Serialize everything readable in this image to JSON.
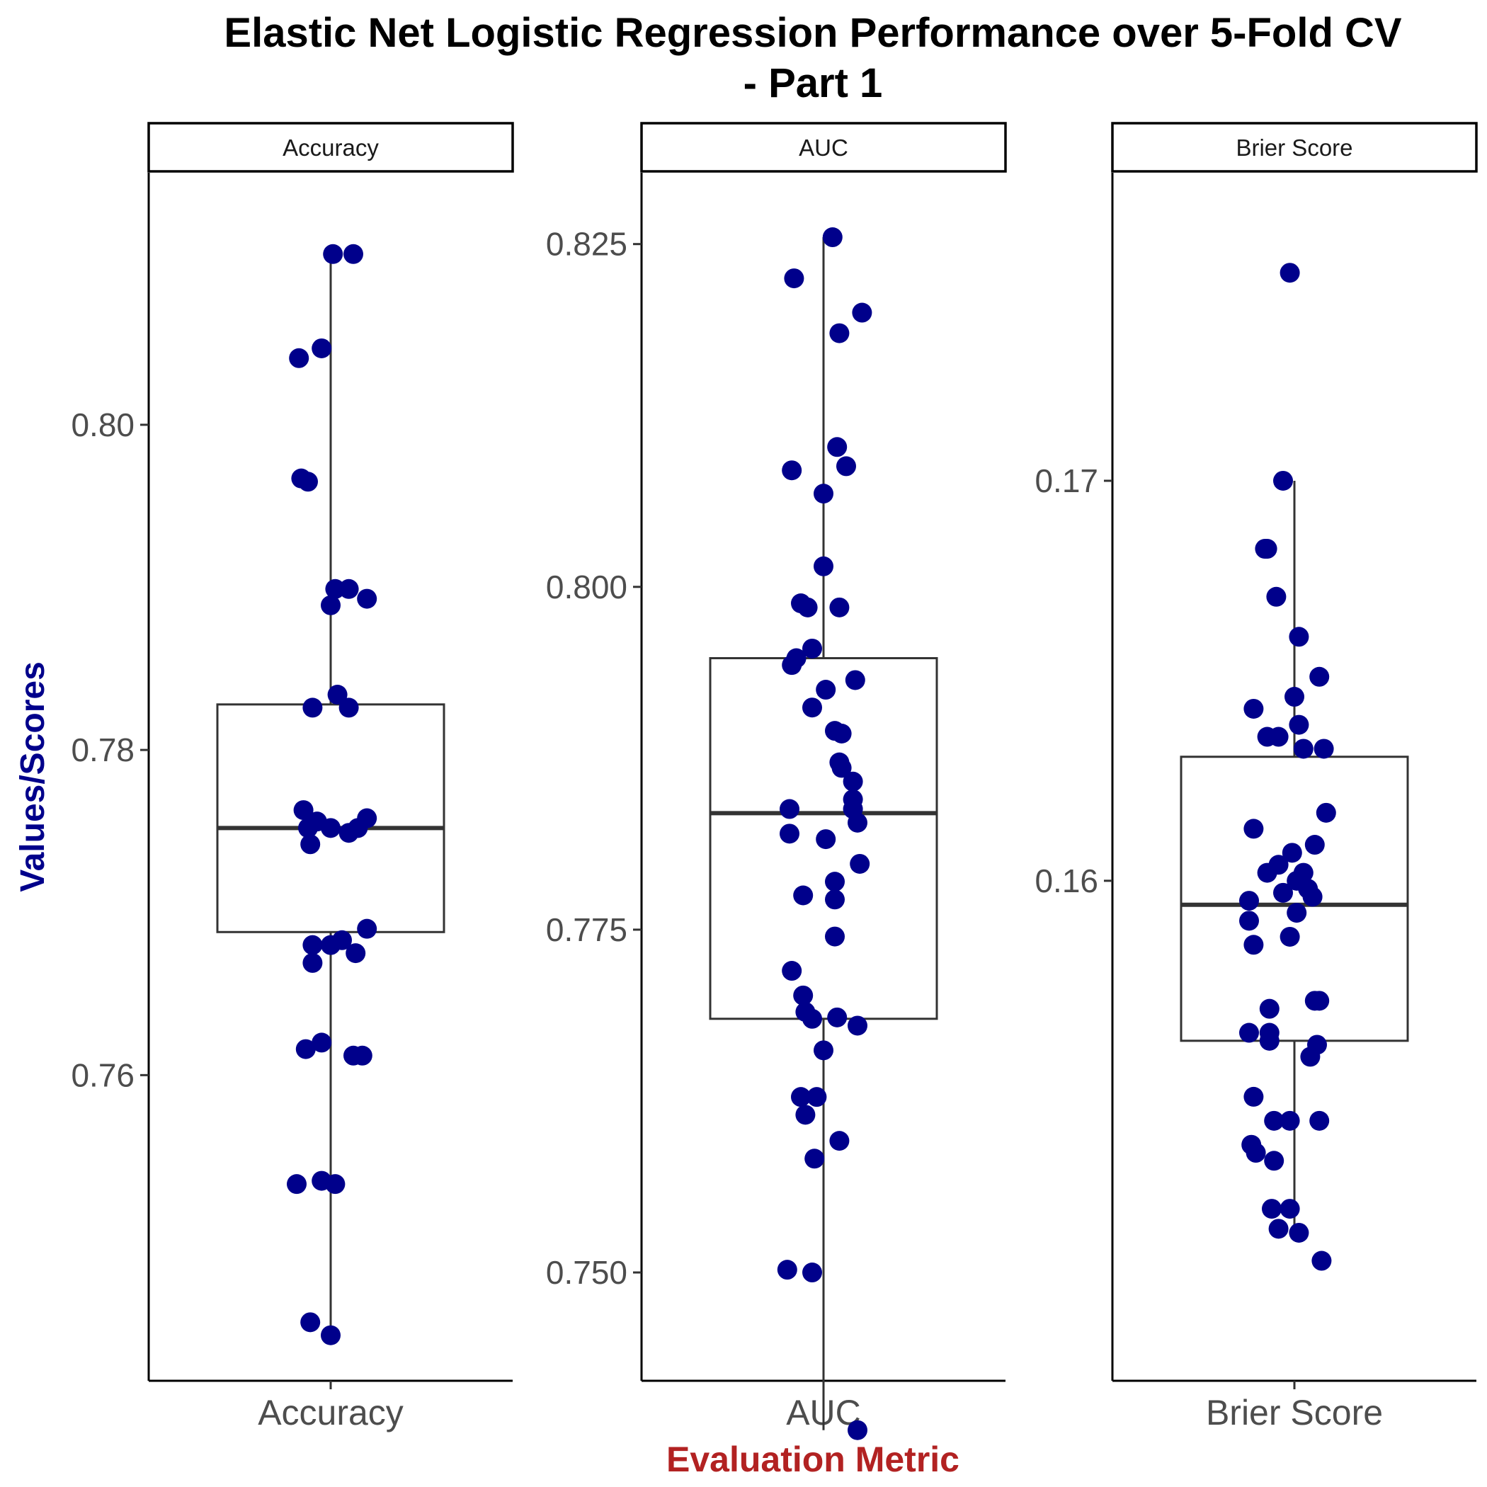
{
  "chart_data": {
    "type": "boxplot",
    "title_line1": "Elastic Net Logistic Regression Performance over 5-Fold CV",
    "title_line2": "- Part 1",
    "xlabel": "Evaluation Metric",
    "ylabel": "Values/Scores",
    "colors": {
      "points": "#00008B",
      "xlabel": "#B22222",
      "ylabel": "#00008B",
      "box": "#333333",
      "axis": "#000000"
    },
    "panels": [
      {
        "name": "Accuracy",
        "strip_label": "Accuracy",
        "x_tick": "Accuracy",
        "ylim": [
          0.7412,
          0.8155
        ],
        "ticks": [
          0.76,
          0.78,
          0.8
        ],
        "tick_labels": [
          "0.76",
          "0.78",
          "0.80"
        ],
        "box": {
          "min": 0.744,
          "q1": 0.7688,
          "median": 0.7752,
          "q3": 0.7828,
          "max": 0.8105
        },
        "points": [
          {
            "x": 0.01,
            "y": 0.8105
          },
          {
            "x": 0.1,
            "y": 0.8105
          },
          {
            "x": -0.14,
            "y": 0.8041
          },
          {
            "x": -0.04,
            "y": 0.8047
          },
          {
            "x": -0.13,
            "y": 0.7967
          },
          {
            "x": -0.1,
            "y": 0.7965
          },
          {
            "x": 0.02,
            "y": 0.7899
          },
          {
            "x": 0.08,
            "y": 0.7899
          },
          {
            "x": 0.16,
            "y": 0.7893
          },
          {
            "x": 0.0,
            "y": 0.7889
          },
          {
            "x": -0.08,
            "y": 0.7826
          },
          {
            "x": 0.03,
            "y": 0.7834
          },
          {
            "x": 0.08,
            "y": 0.7826
          },
          {
            "x": -0.12,
            "y": 0.7763
          },
          {
            "x": -0.06,
            "y": 0.7756
          },
          {
            "x": -0.1,
            "y": 0.7752
          },
          {
            "x": 0.0,
            "y": 0.7752
          },
          {
            "x": 0.08,
            "y": 0.7749
          },
          {
            "x": 0.16,
            "y": 0.7758
          },
          {
            "x": 0.12,
            "y": 0.7752
          },
          {
            "x": -0.09,
            "y": 0.7742
          },
          {
            "x": -0.08,
            "y": 0.768
          },
          {
            "x": 0.0,
            "y": 0.768
          },
          {
            "x": 0.05,
            "y": 0.7683
          },
          {
            "x": 0.16,
            "y": 0.769
          },
          {
            "x": -0.08,
            "y": 0.7669
          },
          {
            "x": 0.11,
            "y": 0.7675
          },
          {
            "x": -0.11,
            "y": 0.7616
          },
          {
            "x": -0.04,
            "y": 0.762
          },
          {
            "x": 0.1,
            "y": 0.7612
          },
          {
            "x": 0.14,
            "y": 0.7612
          },
          {
            "x": -0.15,
            "y": 0.7533
          },
          {
            "x": -0.04,
            "y": 0.7535
          },
          {
            "x": 0.02,
            "y": 0.7533
          },
          {
            "x": -0.09,
            "y": 0.7448
          },
          {
            "x": 0.0,
            "y": 0.744
          }
        ]
      },
      {
        "name": "AUC",
        "strip_label": "AUC",
        "x_tick": "AUC",
        "ylim": [
          0.7421,
          0.8302
        ],
        "ticks": [
          0.75,
          0.775,
          0.8,
          0.825
        ],
        "tick_labels": [
          "0.750",
          "0.775",
          "0.800",
          "0.825"
        ],
        "box": {
          "min": 0.7385,
          "q1": 0.7685,
          "median": 0.7835,
          "q3": 0.7948,
          "max": 0.8255
        },
        "points": [
          {
            "x": 0.04,
            "y": 0.8255
          },
          {
            "x": -0.13,
            "y": 0.8225
          },
          {
            "x": 0.17,
            "y": 0.82
          },
          {
            "x": 0.07,
            "y": 0.8185
          },
          {
            "x": 0.06,
            "y": 0.8102
          },
          {
            "x": 0.1,
            "y": 0.8088
          },
          {
            "x": -0.14,
            "y": 0.8085
          },
          {
            "x": 0.0,
            "y": 0.8068
          },
          {
            "x": 0.0,
            "y": 0.8015
          },
          {
            "x": -0.1,
            "y": 0.7988
          },
          {
            "x": -0.07,
            "y": 0.7985
          },
          {
            "x": 0.07,
            "y": 0.7985
          },
          {
            "x": -0.05,
            "y": 0.7955
          },
          {
            "x": -0.14,
            "y": 0.7943
          },
          {
            "x": -0.12,
            "y": 0.7948
          },
          {
            "x": 0.14,
            "y": 0.7932
          },
          {
            "x": 0.01,
            "y": 0.7925
          },
          {
            "x": -0.05,
            "y": 0.7912
          },
          {
            "x": 0.05,
            "y": 0.7895
          },
          {
            "x": 0.08,
            "y": 0.7893
          },
          {
            "x": 0.07,
            "y": 0.7872
          },
          {
            "x": 0.08,
            "y": 0.7868
          },
          {
            "x": 0.13,
            "y": 0.7858
          },
          {
            "x": 0.13,
            "y": 0.7845
          },
          {
            "x": 0.13,
            "y": 0.7838
          },
          {
            "x": 0.15,
            "y": 0.7828
          },
          {
            "x": -0.15,
            "y": 0.7838
          },
          {
            "x": -0.15,
            "y": 0.782
          },
          {
            "x": 0.01,
            "y": 0.7816
          },
          {
            "x": 0.16,
            "y": 0.7798
          },
          {
            "x": 0.05,
            "y": 0.7785
          },
          {
            "x": -0.09,
            "y": 0.7775
          },
          {
            "x": 0.05,
            "y": 0.7772
          },
          {
            "x": 0.05,
            "y": 0.7745
          },
          {
            "x": -0.14,
            "y": 0.772
          },
          {
            "x": -0.09,
            "y": 0.7702
          },
          {
            "x": -0.08,
            "y": 0.769
          },
          {
            "x": -0.05,
            "y": 0.7685
          },
          {
            "x": 0.06,
            "y": 0.7686
          },
          {
            "x": 0.15,
            "y": 0.768
          },
          {
            "x": 0.0,
            "y": 0.7662
          },
          {
            "x": -0.1,
            "y": 0.7628
          },
          {
            "x": -0.03,
            "y": 0.7628
          },
          {
            "x": -0.08,
            "y": 0.7615
          },
          {
            "x": 0.07,
            "y": 0.7596
          },
          {
            "x": -0.04,
            "y": 0.7583
          },
          {
            "x": -0.16,
            "y": 0.7502
          },
          {
            "x": -0.05,
            "y": 0.75
          },
          {
            "x": 0.15,
            "y": 0.7385
          }
        ]
      },
      {
        "name": "Brier Score",
        "strip_label": "Brier Score",
        "x_tick": "Brier Score",
        "ylim": [
          0.1475,
          0.1777
        ],
        "ticks": [
          0.16,
          0.17
        ],
        "tick_labels": [
          "0.16",
          "0.17"
        ],
        "box": {
          "min": 0.151,
          "q1": 0.156,
          "median": 0.1594,
          "q3": 0.1631,
          "max": 0.17
        },
        "points": [
          {
            "x": -0.02,
            "y": 0.1752
          },
          {
            "x": -0.05,
            "y": 0.17
          },
          {
            "x": -0.13,
            "y": 0.1683
          },
          {
            "x": -0.12,
            "y": 0.1683
          },
          {
            "x": -0.08,
            "y": 0.1671
          },
          {
            "x": 0.02,
            "y": 0.1661
          },
          {
            "x": 0.11,
            "y": 0.1651
          },
          {
            "x": 0.0,
            "y": 0.1646
          },
          {
            "x": -0.18,
            "y": 0.1643
          },
          {
            "x": 0.02,
            "y": 0.1639
          },
          {
            "x": -0.12,
            "y": 0.1636
          },
          {
            "x": -0.07,
            "y": 0.1636
          },
          {
            "x": 0.04,
            "y": 0.1633
          },
          {
            "x": 0.13,
            "y": 0.1633
          },
          {
            "x": 0.14,
            "y": 0.1617
          },
          {
            "x": -0.18,
            "y": 0.1613
          },
          {
            "x": 0.09,
            "y": 0.1609
          },
          {
            "x": -0.01,
            "y": 0.1607
          },
          {
            "x": -0.07,
            "y": 0.1604
          },
          {
            "x": 0.04,
            "y": 0.1602
          },
          {
            "x": -0.12,
            "y": 0.1602
          },
          {
            "x": 0.01,
            "y": 0.16
          },
          {
            "x": 0.06,
            "y": 0.1598
          },
          {
            "x": -0.05,
            "y": 0.1597
          },
          {
            "x": 0.08,
            "y": 0.1596
          },
          {
            "x": -0.2,
            "y": 0.1595
          },
          {
            "x": 0.01,
            "y": 0.1592
          },
          {
            "x": -0.2,
            "y": 0.159
          },
          {
            "x": -0.02,
            "y": 0.1586
          },
          {
            "x": -0.18,
            "y": 0.1584
          },
          {
            "x": 0.09,
            "y": 0.157
          },
          {
            "x": 0.11,
            "y": 0.157
          },
          {
            "x": -0.11,
            "y": 0.1568
          },
          {
            "x": -0.2,
            "y": 0.1562
          },
          {
            "x": -0.11,
            "y": 0.1562
          },
          {
            "x": -0.11,
            "y": 0.156
          },
          {
            "x": 0.1,
            "y": 0.1559
          },
          {
            "x": 0.07,
            "y": 0.1556
          },
          {
            "x": -0.18,
            "y": 0.1546
          },
          {
            "x": -0.09,
            "y": 0.154
          },
          {
            "x": -0.02,
            "y": 0.154
          },
          {
            "x": 0.11,
            "y": 0.154
          },
          {
            "x": -0.19,
            "y": 0.1534
          },
          {
            "x": -0.17,
            "y": 0.1532
          },
          {
            "x": -0.09,
            "y": 0.153
          },
          {
            "x": -0.1,
            "y": 0.1518
          },
          {
            "x": -0.02,
            "y": 0.1518
          },
          {
            "x": -0.07,
            "y": 0.1513
          },
          {
            "x": 0.02,
            "y": 0.1512
          },
          {
            "x": 0.12,
            "y": 0.1505
          }
        ]
      }
    ]
  }
}
